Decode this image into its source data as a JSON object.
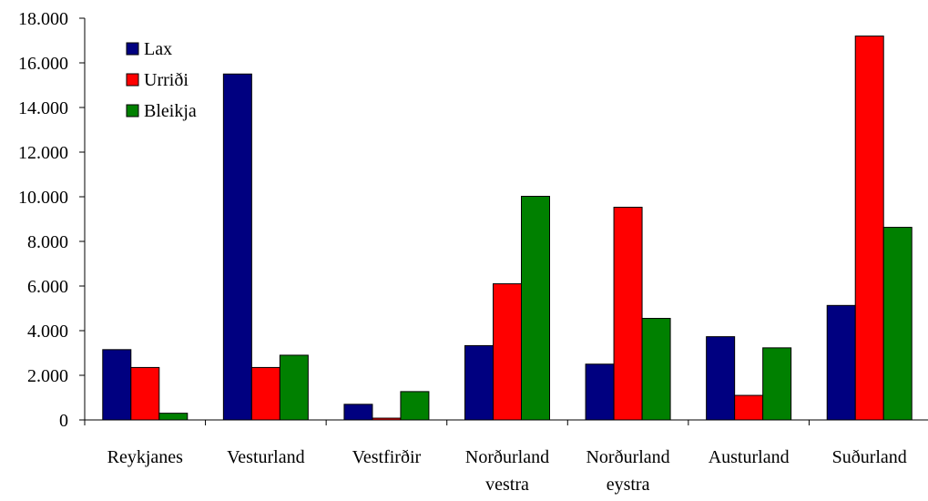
{
  "chart_data": {
    "type": "bar",
    "title": "",
    "xlabel": "",
    "ylabel": "",
    "ylim": [
      0,
      18000
    ],
    "yticks": [
      0,
      2000,
      4000,
      6000,
      8000,
      10000,
      12000,
      14000,
      16000,
      18000
    ],
    "ytick_labels": [
      "0",
      "2.000",
      "4.000",
      "6.000",
      "8.000",
      "10.000",
      "12.000",
      "14.000",
      "16.000",
      "18.000"
    ],
    "grid": false,
    "legend_position": "top-left",
    "categories": [
      [
        "Reykjanes"
      ],
      [
        "Vesturland"
      ],
      [
        "Vestfirðir"
      ],
      [
        "Norðurland",
        "vestra"
      ],
      [
        "Norðurland",
        "eystra"
      ],
      [
        "Austurland"
      ],
      [
        "Suðurland"
      ]
    ],
    "series": [
      {
        "name": "Lax",
        "color": "#000080",
        "values": [
          3150,
          15500,
          700,
          3330,
          2500,
          3730,
          5130
        ]
      },
      {
        "name": "Urriði",
        "color": "#ff0000",
        "values": [
          2350,
          2350,
          80,
          6100,
          9530,
          1100,
          17200
        ]
      },
      {
        "name": "Bleikja",
        "color": "#008000",
        "values": [
          300,
          2900,
          1270,
          10020,
          4550,
          3230,
          8630
        ]
      }
    ]
  }
}
